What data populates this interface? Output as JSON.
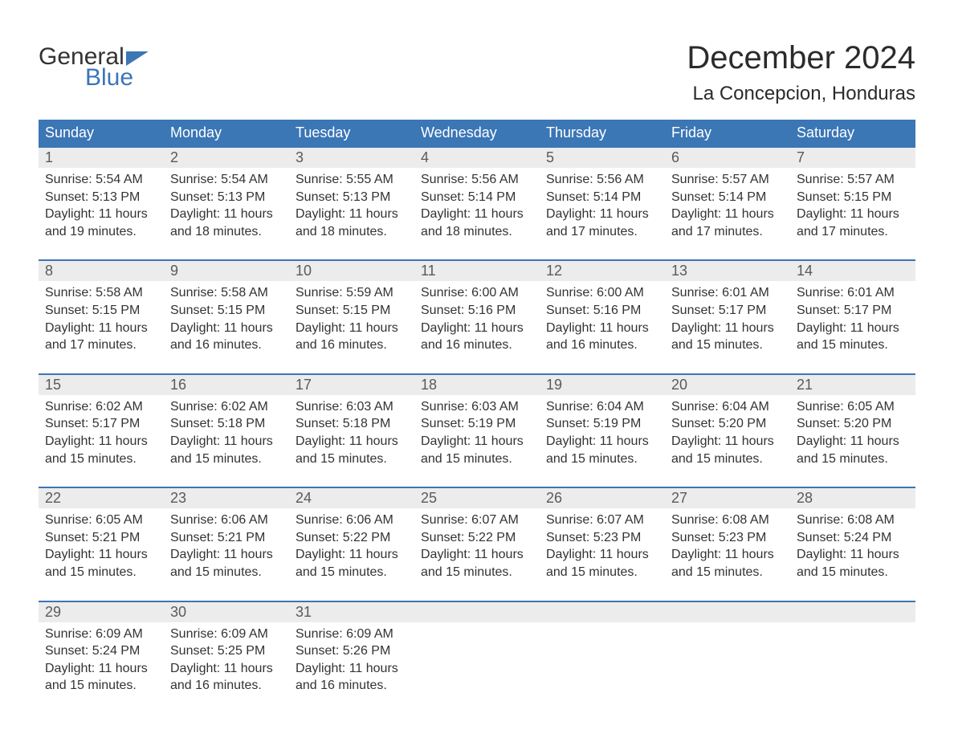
{
  "colors": {
    "brand_blue": "#3b76b5",
    "header_bg": "#3b76b5",
    "header_text": "#ffffff",
    "daynum_bg": "#ececec",
    "daynum_text": "#5a5a5a",
    "body_text": "#333333",
    "week_border": "#3b76b5",
    "page_bg": "#ffffff",
    "logo_general": "#333333",
    "logo_blue": "#3b76b5",
    "title_text": "#2b2b2b"
  },
  "typography": {
    "month_title_fontsize": 40,
    "location_fontsize": 24,
    "logo_fontsize": 30,
    "dayhead_fontsize": 18,
    "daynum_fontsize": 18,
    "body_fontsize": 16
  },
  "logo": {
    "general": "General",
    "blue": "Blue"
  },
  "title": {
    "month": "December 2024",
    "location": "La Concepcion, Honduras"
  },
  "day_headers": [
    "Sunday",
    "Monday",
    "Tuesday",
    "Wednesday",
    "Thursday",
    "Friday",
    "Saturday"
  ],
  "weeks": [
    {
      "days": [
        {
          "n": "1",
          "sunrise": "Sunrise: 5:54 AM",
          "sunset": "Sunset: 5:13 PM",
          "daylight": "Daylight: 11 hours and 19 minutes."
        },
        {
          "n": "2",
          "sunrise": "Sunrise: 5:54 AM",
          "sunset": "Sunset: 5:13 PM",
          "daylight": "Daylight: 11 hours and 18 minutes."
        },
        {
          "n": "3",
          "sunrise": "Sunrise: 5:55 AM",
          "sunset": "Sunset: 5:13 PM",
          "daylight": "Daylight: 11 hours and 18 minutes."
        },
        {
          "n": "4",
          "sunrise": "Sunrise: 5:56 AM",
          "sunset": "Sunset: 5:14 PM",
          "daylight": "Daylight: 11 hours and 18 minutes."
        },
        {
          "n": "5",
          "sunrise": "Sunrise: 5:56 AM",
          "sunset": "Sunset: 5:14 PM",
          "daylight": "Daylight: 11 hours and 17 minutes."
        },
        {
          "n": "6",
          "sunrise": "Sunrise: 5:57 AM",
          "sunset": "Sunset: 5:14 PM",
          "daylight": "Daylight: 11 hours and 17 minutes."
        },
        {
          "n": "7",
          "sunrise": "Sunrise: 5:57 AM",
          "sunset": "Sunset: 5:15 PM",
          "daylight": "Daylight: 11 hours and 17 minutes."
        }
      ]
    },
    {
      "days": [
        {
          "n": "8",
          "sunrise": "Sunrise: 5:58 AM",
          "sunset": "Sunset: 5:15 PM",
          "daylight": "Daylight: 11 hours and 17 minutes."
        },
        {
          "n": "9",
          "sunrise": "Sunrise: 5:58 AM",
          "sunset": "Sunset: 5:15 PM",
          "daylight": "Daylight: 11 hours and 16 minutes."
        },
        {
          "n": "10",
          "sunrise": "Sunrise: 5:59 AM",
          "sunset": "Sunset: 5:15 PM",
          "daylight": "Daylight: 11 hours and 16 minutes."
        },
        {
          "n": "11",
          "sunrise": "Sunrise: 6:00 AM",
          "sunset": "Sunset: 5:16 PM",
          "daylight": "Daylight: 11 hours and 16 minutes."
        },
        {
          "n": "12",
          "sunrise": "Sunrise: 6:00 AM",
          "sunset": "Sunset: 5:16 PM",
          "daylight": "Daylight: 11 hours and 16 minutes."
        },
        {
          "n": "13",
          "sunrise": "Sunrise: 6:01 AM",
          "sunset": "Sunset: 5:17 PM",
          "daylight": "Daylight: 11 hours and 15 minutes."
        },
        {
          "n": "14",
          "sunrise": "Sunrise: 6:01 AM",
          "sunset": "Sunset: 5:17 PM",
          "daylight": "Daylight: 11 hours and 15 minutes."
        }
      ]
    },
    {
      "days": [
        {
          "n": "15",
          "sunrise": "Sunrise: 6:02 AM",
          "sunset": "Sunset: 5:17 PM",
          "daylight": "Daylight: 11 hours and 15 minutes."
        },
        {
          "n": "16",
          "sunrise": "Sunrise: 6:02 AM",
          "sunset": "Sunset: 5:18 PM",
          "daylight": "Daylight: 11 hours and 15 minutes."
        },
        {
          "n": "17",
          "sunrise": "Sunrise: 6:03 AM",
          "sunset": "Sunset: 5:18 PM",
          "daylight": "Daylight: 11 hours and 15 minutes."
        },
        {
          "n": "18",
          "sunrise": "Sunrise: 6:03 AM",
          "sunset": "Sunset: 5:19 PM",
          "daylight": "Daylight: 11 hours and 15 minutes."
        },
        {
          "n": "19",
          "sunrise": "Sunrise: 6:04 AM",
          "sunset": "Sunset: 5:19 PM",
          "daylight": "Daylight: 11 hours and 15 minutes."
        },
        {
          "n": "20",
          "sunrise": "Sunrise: 6:04 AM",
          "sunset": "Sunset: 5:20 PM",
          "daylight": "Daylight: 11 hours and 15 minutes."
        },
        {
          "n": "21",
          "sunrise": "Sunrise: 6:05 AM",
          "sunset": "Sunset: 5:20 PM",
          "daylight": "Daylight: 11 hours and 15 minutes."
        }
      ]
    },
    {
      "days": [
        {
          "n": "22",
          "sunrise": "Sunrise: 6:05 AM",
          "sunset": "Sunset: 5:21 PM",
          "daylight": "Daylight: 11 hours and 15 minutes."
        },
        {
          "n": "23",
          "sunrise": "Sunrise: 6:06 AM",
          "sunset": "Sunset: 5:21 PM",
          "daylight": "Daylight: 11 hours and 15 minutes."
        },
        {
          "n": "24",
          "sunrise": "Sunrise: 6:06 AM",
          "sunset": "Sunset: 5:22 PM",
          "daylight": "Daylight: 11 hours and 15 minutes."
        },
        {
          "n": "25",
          "sunrise": "Sunrise: 6:07 AM",
          "sunset": "Sunset: 5:22 PM",
          "daylight": "Daylight: 11 hours and 15 minutes."
        },
        {
          "n": "26",
          "sunrise": "Sunrise: 6:07 AM",
          "sunset": "Sunset: 5:23 PM",
          "daylight": "Daylight: 11 hours and 15 minutes."
        },
        {
          "n": "27",
          "sunrise": "Sunrise: 6:08 AM",
          "sunset": "Sunset: 5:23 PM",
          "daylight": "Daylight: 11 hours and 15 minutes."
        },
        {
          "n": "28",
          "sunrise": "Sunrise: 6:08 AM",
          "sunset": "Sunset: 5:24 PM",
          "daylight": "Daylight: 11 hours and 15 minutes."
        }
      ]
    },
    {
      "days": [
        {
          "n": "29",
          "sunrise": "Sunrise: 6:09 AM",
          "sunset": "Sunset: 5:24 PM",
          "daylight": "Daylight: 11 hours and 15 minutes."
        },
        {
          "n": "30",
          "sunrise": "Sunrise: 6:09 AM",
          "sunset": "Sunset: 5:25 PM",
          "daylight": "Daylight: 11 hours and 16 minutes."
        },
        {
          "n": "31",
          "sunrise": "Sunrise: 6:09 AM",
          "sunset": "Sunset: 5:26 PM",
          "daylight": "Daylight: 11 hours and 16 minutes."
        },
        null,
        null,
        null,
        null
      ]
    }
  ]
}
